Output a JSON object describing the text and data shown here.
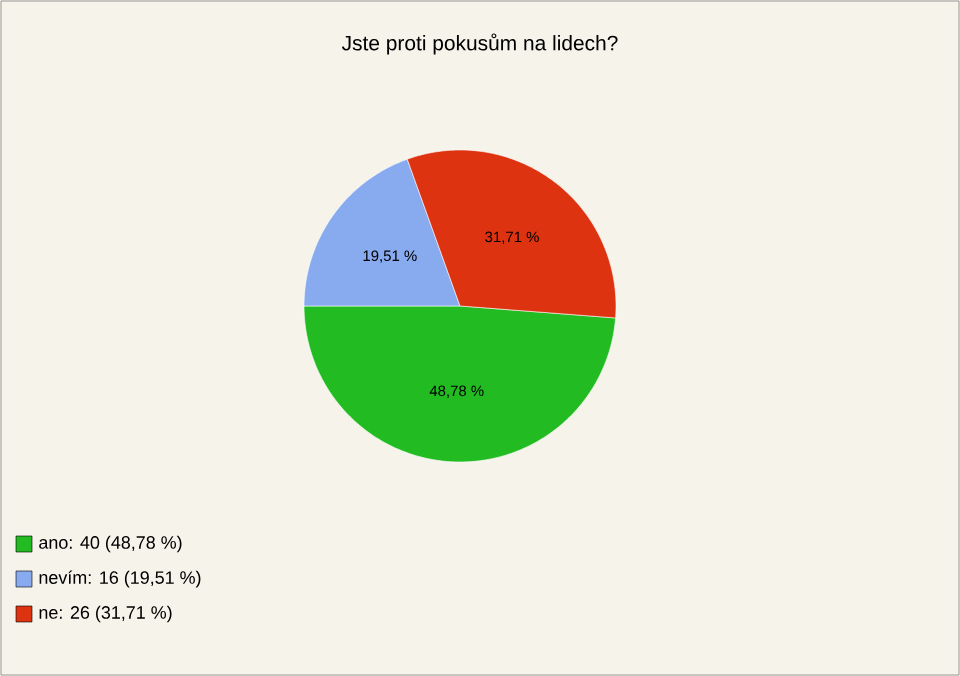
{
  "chart_data": {
    "type": "pie",
    "title": "Jste proti pokusům na lidech?",
    "categories": [
      "ano: 40 (48,78 %)",
      "nevím: 16 (19,51 %)",
      "ne: 26 (31,71 %)"
    ],
    "values": [
      48.78,
      19.51,
      31.71
    ],
    "colors": [
      "#22bb22",
      "#88aaee",
      "#dd3311"
    ],
    "value_labels": [
      "48,78 %",
      "19,51 %",
      "31,71 %"
    ],
    "legend": "bottom left"
  }
}
